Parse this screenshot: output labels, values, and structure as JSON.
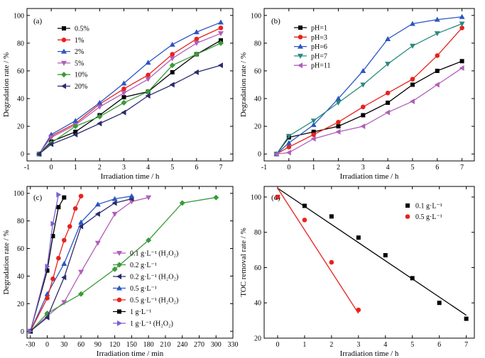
{
  "chart_data": [
    {
      "panel_label": "(a)",
      "type": "line",
      "xlabel": "Irradiation time / h",
      "ylabel": "Degradation rate / %",
      "xlim": [
        -1,
        7.5
      ],
      "ylim": [
        -5,
        105
      ],
      "xticks": [
        -1,
        0,
        1,
        2,
        3,
        4,
        5,
        6,
        7
      ],
      "xtick_labels": [
        "-1",
        "0",
        "1",
        "2",
        "3",
        "4",
        "5",
        "6",
        "7"
      ],
      "yticks": [
        0,
        20,
        40,
        60,
        80,
        100
      ],
      "ytick_labels": [
        "0",
        "20",
        "40",
        "60",
        "80",
        "100"
      ],
      "legend_position": "upper-left",
      "grid": false,
      "x": [
        -0.5,
        0,
        1,
        2,
        3,
        4,
        5,
        6,
        7
      ],
      "series": [
        {
          "name": "0.5%",
          "color": "#000000",
          "marker": "square",
          "values": [
            0,
            9,
            16,
            28,
            41,
            45,
            59,
            72,
            82
          ]
        },
        {
          "name": "1%",
          "color": "#e8221e",
          "marker": "circle",
          "values": [
            0,
            13,
            22,
            36,
            47,
            57,
            72,
            83,
            91
          ]
        },
        {
          "name": "2%",
          "color": "#2a55c4",
          "marker": "triangle-up",
          "values": [
            0,
            14,
            24,
            37,
            51,
            66,
            79,
            88,
            95
          ]
        },
        {
          "name": "5%",
          "color": "#b05fb8",
          "marker": "triangle-down",
          "values": [
            0,
            12,
            21,
            34,
            44,
            54,
            69,
            80,
            87
          ]
        },
        {
          "name": "10%",
          "color": "#3a9a3a",
          "marker": "diamond",
          "values": [
            0,
            8,
            20,
            27,
            37,
            45,
            64,
            72,
            80
          ]
        },
        {
          "name": "20%",
          "color": "#2b2b6b",
          "marker": "triangle-left",
          "values": [
            0,
            7,
            14,
            22,
            30,
            42,
            50,
            59,
            64
          ]
        }
      ]
    },
    {
      "panel_label": "(b)",
      "type": "line",
      "xlabel": "Irradiation time / h",
      "ylabel": "Degradation rate / %",
      "xlim": [
        -1,
        7.5
      ],
      "ylim": [
        -5,
        105
      ],
      "xticks": [
        -1,
        0,
        1,
        2,
        3,
        4,
        5,
        6,
        7
      ],
      "xtick_labels": [
        "-1",
        "0",
        "1",
        "2",
        "3",
        "4",
        "5",
        "6",
        "7"
      ],
      "yticks": [
        0,
        20,
        40,
        60,
        80,
        100
      ],
      "ytick_labels": [
        "0",
        "20",
        "40",
        "60",
        "80",
        "100"
      ],
      "legend_position": "upper-left",
      "grid": false,
      "x": [
        -0.5,
        0,
        1,
        2,
        3,
        4,
        5,
        6,
        7
      ],
      "series": [
        {
          "name": "pH=1",
          "color": "#000000",
          "marker": "square",
          "values": [
            0,
            12,
            16,
            20,
            28,
            37,
            50,
            60,
            67
          ]
        },
        {
          "name": "pH=3",
          "color": "#e8221e",
          "marker": "circle",
          "values": [
            0,
            5,
            14,
            23,
            34,
            44,
            54,
            71,
            91
          ]
        },
        {
          "name": "pH=6",
          "color": "#2a55c4",
          "marker": "triangle-up",
          "values": [
            0,
            8,
            21,
            40,
            60,
            83,
            94,
            97,
            99
          ]
        },
        {
          "name": "pH=7",
          "color": "#2a8a80",
          "marker": "triangle-down",
          "values": [
            0,
            13,
            24,
            37,
            50,
            65,
            78,
            87,
            94
          ]
        },
        {
          "name": "pH=11",
          "color": "#b05fb8",
          "marker": "triangle-left",
          "values": [
            0,
            1,
            11,
            16,
            20,
            30,
            38,
            50,
            62
          ]
        }
      ]
    },
    {
      "panel_label": "(c)",
      "type": "line",
      "xlabel": "Irradiation time / min",
      "ylabel": "Degradation rate / %",
      "xlim": [
        -36,
        330
      ],
      "ylim": [
        -5,
        105
      ],
      "xticks": [
        -30,
        0,
        30,
        60,
        90,
        120,
        150,
        180,
        210,
        240,
        270,
        300,
        330
      ],
      "xtick_labels": [
        "-30",
        "0",
        "30",
        "60",
        "90",
        "120",
        "150",
        "180",
        "210",
        "240",
        "270",
        "300",
        "330"
      ],
      "yticks": [
        0,
        20,
        40,
        60,
        80,
        100
      ],
      "ytick_labels": [
        "0",
        "20",
        "40",
        "60",
        "80",
        "100"
      ],
      "legend_position": "lower-right",
      "grid": false,
      "series": [
        {
          "name": "0.1 g·L⁻¹ (H₂O₂)",
          "color": "#b05fb8",
          "marker": "triangle-down",
          "x": [
            -30,
            0,
            30,
            60,
            90,
            120,
            150,
            180
          ],
          "values": [
            0,
            11,
            21,
            43,
            64,
            85,
            94,
            97
          ]
        },
        {
          "name": "0.2 g·L⁻¹",
          "color": "#3a9a3a",
          "marker": "diamond",
          "x": [
            -30,
            0,
            60,
            120,
            180,
            240,
            300
          ],
          "values": [
            0,
            13,
            27,
            45,
            66,
            93,
            97
          ]
        },
        {
          "name": "0.2 g·L⁻¹ (H₂O₂)",
          "color": "#2b2b6b",
          "marker": "triangle-left",
          "x": [
            -30,
            0,
            30,
            60,
            90,
            120,
            150
          ],
          "values": [
            0,
            10,
            39,
            76,
            85,
            93,
            96
          ]
        },
        {
          "name": "0.5 g·L⁻¹",
          "color": "#2a55c4",
          "marker": "triangle-up",
          "x": [
            -30,
            0,
            30,
            60,
            90,
            120,
            150
          ],
          "values": [
            0,
            27,
            49,
            79,
            92,
            96,
            98
          ]
        },
        {
          "name": "0.5 g·L⁻¹ (H₂O₂)",
          "color": "#e8221e",
          "marker": "circle",
          "x": [
            -30,
            0,
            10,
            20,
            30,
            40,
            50,
            60
          ],
          "values": [
            0,
            24,
            38,
            53,
            66,
            76,
            89,
            98
          ]
        },
        {
          "name": "1 g·L⁻¹",
          "color": "#000000",
          "marker": "square",
          "x": [
            -30,
            0,
            10,
            20,
            30
          ],
          "values": [
            0,
            44,
            69,
            90,
            97
          ]
        },
        {
          "name": "1 g·L⁻¹ (H₂O₂)",
          "color": "#7a5fd0",
          "marker": "triangle-right",
          "x": [
            -30,
            0,
            10,
            20
          ],
          "values": [
            0,
            47,
            78,
            99
          ]
        }
      ]
    },
    {
      "panel_label": "(d)",
      "type": "scatter",
      "xlabel": "Irradiation time / h",
      "ylabel": "TOC removal rate / %",
      "xlim": [
        -0.5,
        7.3
      ],
      "ylim": [
        20,
        106
      ],
      "xticks": [
        0,
        1,
        2,
        3,
        4,
        5,
        6,
        7
      ],
      "xtick_labels": [
        "0",
        "1",
        "2",
        "3",
        "4",
        "5",
        "6",
        "7"
      ],
      "yticks": [
        20,
        40,
        60,
        80,
        100
      ],
      "ytick_labels": [
        "20",
        "40",
        "60",
        "80",
        "100"
      ],
      "legend_position": "upper-right",
      "grid": false,
      "series": [
        {
          "name": "0.1 g·L⁻¹",
          "color": "#000000",
          "marker": "square",
          "x": [
            0,
            1,
            2,
            3,
            4,
            5,
            6,
            7
          ],
          "values": [
            100,
            95,
            89,
            77,
            67,
            54,
            40,
            31
          ],
          "fit": [
            [
              0,
              105
            ],
            [
              7,
              33
            ]
          ]
        },
        {
          "name": "0.5 g·L⁻¹",
          "color": "#e8221e",
          "marker": "circle",
          "x": [
            0,
            1,
            2,
            3
          ],
          "values": [
            100,
            87,
            63,
            36
          ],
          "fit": [
            [
              0,
              105
            ],
            [
              3,
              34
            ]
          ]
        }
      ]
    }
  ]
}
